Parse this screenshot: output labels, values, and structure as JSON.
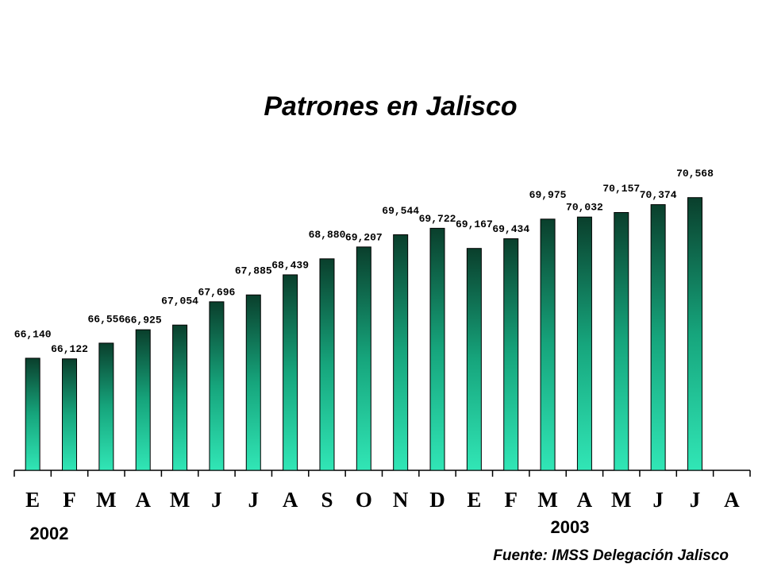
{
  "chart_data": {
    "type": "bar",
    "title": "Patrones en Jalisco",
    "categories": [
      "E",
      "F",
      "M",
      "A",
      "M",
      "J",
      "J",
      "A",
      "S",
      "O",
      "N",
      "D",
      "E",
      "F",
      "M",
      "A",
      "M",
      "J",
      "J",
      "A"
    ],
    "values": [
      66140,
      66122,
      66556,
      66925,
      67054,
      67696,
      67885,
      68439,
      68880,
      69207,
      69544,
      69722,
      69167,
      69434,
      69975,
      70032,
      70157,
      70374,
      70568,
      null
    ],
    "value_labels": [
      "66,140",
      "66,122",
      "66,556",
      "66,925",
      "67,054",
      "67,696",
      "67,885",
      "68,439",
      "68,880",
      "69,207",
      "69,544",
      "69,722",
      "69,167",
      "69,434",
      "69,975",
      "70,032",
      "70,157",
      "70,374",
      "70,568",
      null
    ],
    "color": "#16a57c",
    "ylim": [
      63050,
      71000
    ],
    "year_labels": [
      "2002",
      "2003"
    ],
    "source": "Fuente: IMSS Delegación Jalisco"
  }
}
